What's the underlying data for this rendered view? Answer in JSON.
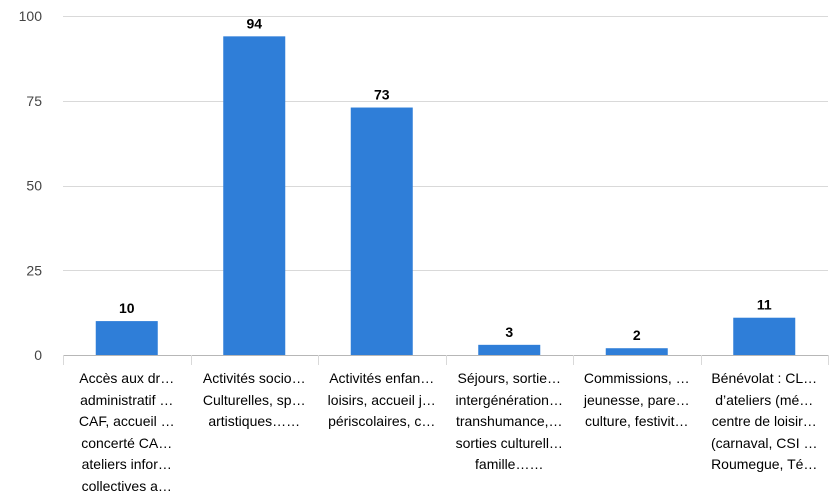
{
  "chart_data": {
    "type": "bar",
    "title": "",
    "xlabel": "",
    "ylabel": "",
    "ylim": [
      0,
      100
    ],
    "yticks": [
      0,
      25,
      50,
      75,
      100
    ],
    "grid": true,
    "legend": "none",
    "bar_color": "#2f7ed8",
    "categories": [
      [
        "Accès aux dr…",
        "administratif …",
        "CAF, accueil …",
        "concerté CA…",
        "ateliers infor…",
        "collectives a…"
      ],
      [
        "Activités socio…",
        "Culturelles, sp…",
        "artistiques……"
      ],
      [
        "Activités enfan…",
        "loisirs, accueil j…",
        "périscolaires, c…"
      ],
      [
        "Séjours, sortie…",
        "intergénération…",
        "transhumance,…",
        "sorties culturell…",
        "famille……"
      ],
      [
        "Commissions, …",
        "jeunesse, pare…",
        "culture, festivit…"
      ],
      [
        "Bénévolat : CL…",
        "d’ateliers (mé…",
        "centre de loisir…",
        "(carnaval, CSI …",
        "Roumegue, Té…"
      ]
    ],
    "values": [
      10,
      94,
      73,
      3,
      2,
      11
    ]
  }
}
